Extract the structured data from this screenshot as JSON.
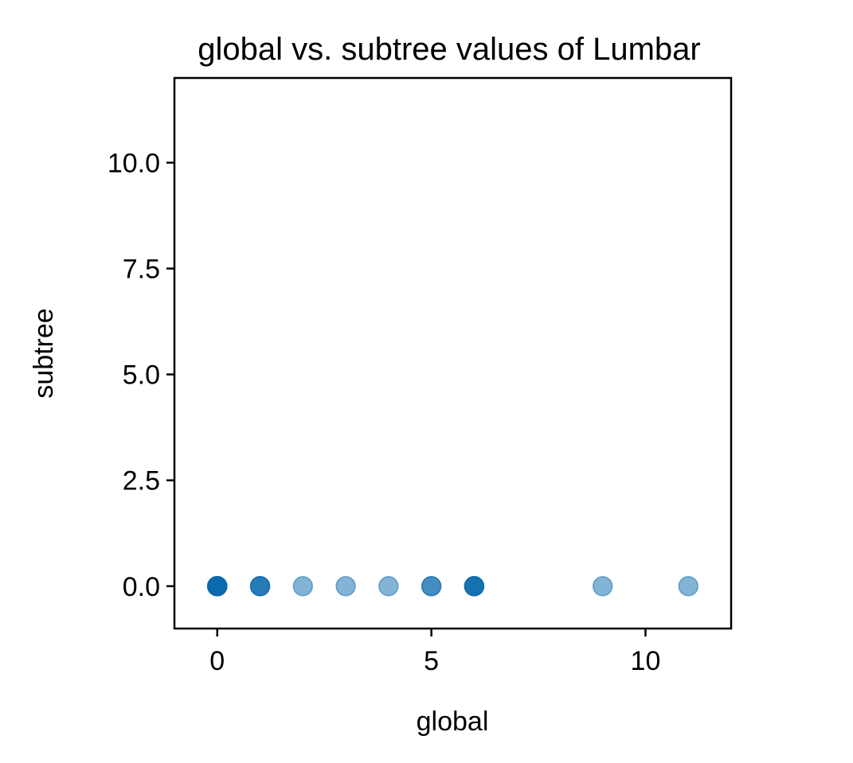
{
  "chart_data": {
    "type": "scatter",
    "title": "global vs. subtree values of Lumbar",
    "xlabel": "global",
    "ylabel": "subtree",
    "xlim": [
      -1,
      12
    ],
    "ylim": [
      -1,
      12
    ],
    "xticks": [
      0,
      5,
      10
    ],
    "xtick_labels": [
      "0",
      "5",
      "10"
    ],
    "yticks": [
      0,
      2.5,
      5,
      7.5,
      10
    ],
    "ytick_labels": [
      "0.0",
      "2.5",
      "5.0",
      "7.5",
      "10.0"
    ],
    "grid": false,
    "marker_color": "#0868ac",
    "points": [
      {
        "x": 0,
        "y": 0,
        "count": 6
      },
      {
        "x": 1,
        "y": 0,
        "count": 3
      },
      {
        "x": 2,
        "y": 0,
        "count": 1
      },
      {
        "x": 3,
        "y": 0,
        "count": 1
      },
      {
        "x": 4,
        "y": 0,
        "count": 1
      },
      {
        "x": 5,
        "y": 0,
        "count": 2
      },
      {
        "x": 6,
        "y": 0,
        "count": 4
      },
      {
        "x": 9,
        "y": 0,
        "count": 1
      },
      {
        "x": 11,
        "y": 0,
        "count": 1
      }
    ]
  }
}
